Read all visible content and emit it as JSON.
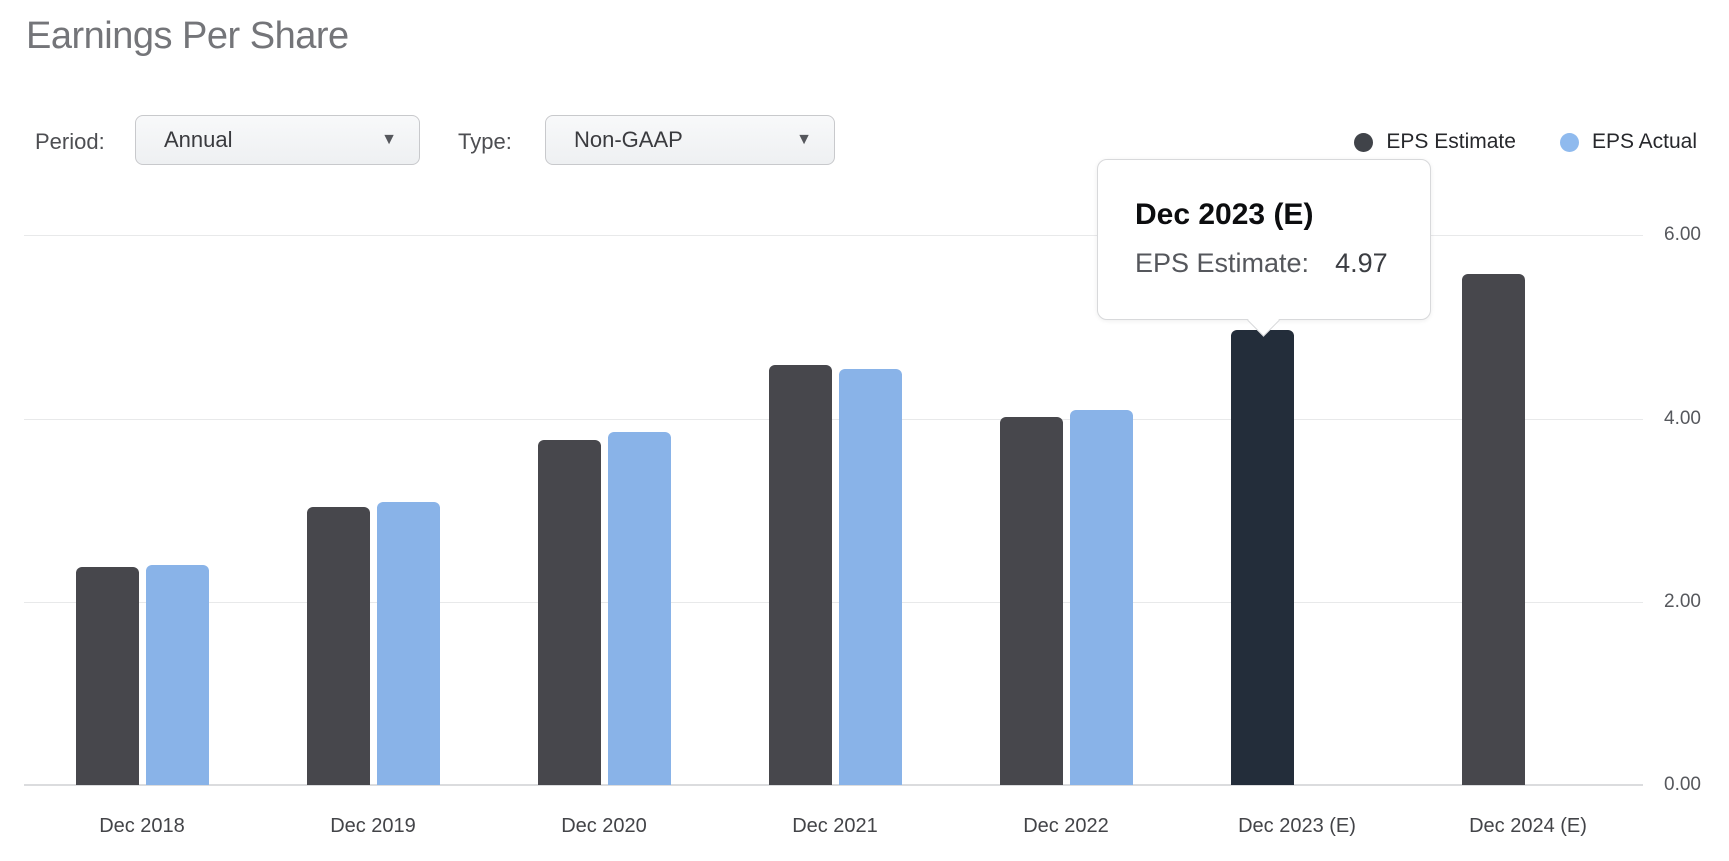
{
  "title": "Earnings Per Share",
  "controls": {
    "period_label": "Period:",
    "period_value": "Annual",
    "type_label": "Type:",
    "type_value": "Non-GAAP",
    "dropdown_arrow": "▼"
  },
  "legend": [
    {
      "label": "EPS Estimate",
      "color": "#404349"
    },
    {
      "label": "EPS Actual",
      "color": "#8fbaee"
    }
  ],
  "tooltip": {
    "title": "Dec 2023 (E)",
    "label": "EPS Estimate:",
    "value": "4.97"
  },
  "chart_data": {
    "type": "bar",
    "title": "Earnings Per Share",
    "categories": [
      "Dec 2018",
      "Dec 2019",
      "Dec 2020",
      "Dec 2021",
      "Dec 2022",
      "Dec 2023 (E)",
      "Dec 2024 (E)"
    ],
    "series": [
      {
        "name": "EPS Estimate",
        "color": "#47474c",
        "values": [
          2.38,
          3.04,
          3.77,
          4.58,
          4.02,
          4.97,
          5.58
        ]
      },
      {
        "name": "EPS Actual",
        "color": "#89b3e8",
        "values": [
          2.4,
          3.09,
          3.85,
          4.54,
          4.09,
          null,
          null
        ]
      }
    ],
    "highlight": {
      "category_index": 5,
      "series": "EPS Estimate",
      "color": "#232d3a"
    },
    "yticks": [
      6,
      4,
      2,
      0
    ],
    "ytick_labels": [
      "6.00",
      "4.00",
      "2.00",
      "0.00"
    ],
    "ylim": [
      0,
      6.5
    ],
    "grid": true,
    "legend_position": "top-right",
    "y_axis_side": "right",
    "xlabel": "",
    "ylabel": ""
  }
}
